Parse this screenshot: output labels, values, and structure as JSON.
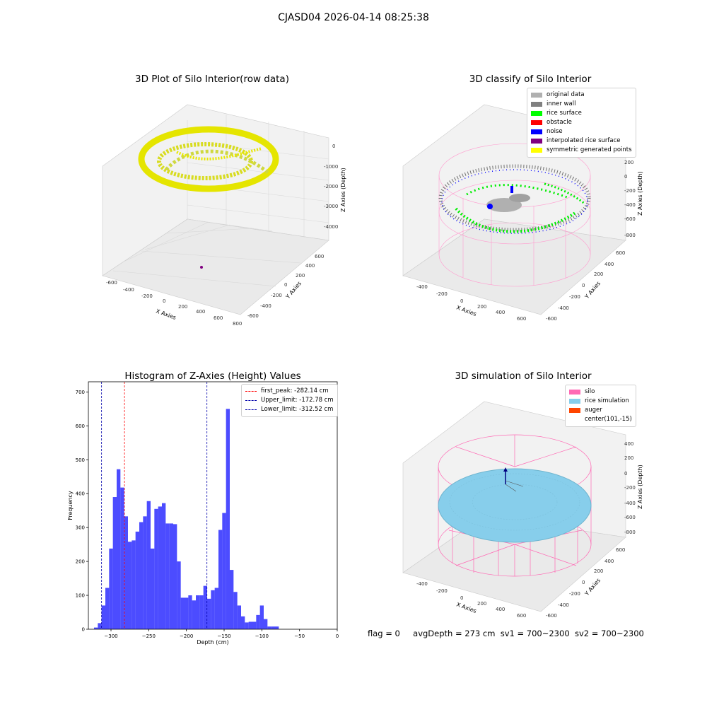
{
  "suptitle": "CJASD04 2026-04-14 08:25:38",
  "panels": {
    "raw": {
      "title": "3D Plot of Silo Interior(row data)",
      "xlabel": "X Axies",
      "ylabel": "Y Axies",
      "zlabel": "Z Axies (Depth)",
      "xticks": [
        "-600",
        "-400",
        "-200",
        "0",
        "200",
        "400",
        "600",
        "800"
      ],
      "yticks": [
        "-600",
        "-400",
        "-200",
        "0",
        "200",
        "400",
        "600"
      ],
      "zticks": [
        "0",
        "-1000",
        "-2000",
        "-3000",
        "-4000"
      ]
    },
    "classify": {
      "title": "3D classify of Silo Interior",
      "xlabel": "X Axies",
      "ylabel": "Y Axies",
      "zlabel": "Z Axies (Depth)",
      "xticks": [
        "-400",
        "-200",
        "0",
        "200",
        "400",
        "600"
      ],
      "yticks": [
        "-600",
        "-400",
        "-200",
        "0",
        "200",
        "400",
        "600"
      ],
      "zticks": [
        "400",
        "200",
        "0",
        "-200",
        "-400",
        "-600",
        "-800"
      ],
      "legend": [
        {
          "label": "original data",
          "color": "#b0b0b0"
        },
        {
          "label": "inner wall",
          "color": "#808080"
        },
        {
          "label": "rice surface",
          "color": "#00ff00"
        },
        {
          "label": "obstacle",
          "color": "#ff0000"
        },
        {
          "label": "noise",
          "color": "#0000ff"
        },
        {
          "label": "interpolated rice surface",
          "color": "#800080"
        },
        {
          "label": "symmetric generated points",
          "color": "#ffff00"
        }
      ]
    },
    "simulation": {
      "title": "3D simulation of Silo Interior",
      "xlabel": "X Axies",
      "ylabel": "Y Axies",
      "zlabel": "Z Axies (Depth)",
      "xticks": [
        "-400",
        "-200",
        "0",
        "200",
        "400",
        "600"
      ],
      "yticks": [
        "-600",
        "-400",
        "-200",
        "0",
        "200",
        "400",
        "600"
      ],
      "zticks": [
        "400",
        "200",
        "0",
        "-200",
        "-400",
        "-600",
        "-800"
      ],
      "legend": [
        {
          "label": "silo",
          "color": "#ff69b4"
        },
        {
          "label": "rice simulation",
          "color": "#87ceeb"
        },
        {
          "label": "auger",
          "color": "#ff4500"
        },
        {
          "label": "center(101,-15)",
          "color": ""
        }
      ]
    }
  },
  "footer": {
    "flag": "flag = 0",
    "avg_depth": "avgDepth = 273 cm",
    "sv1": "sv1 = 700~2300",
    "sv2": "sv2 = 700~2300"
  },
  "chart_data": {
    "type": "bar",
    "title": "Histogram of Z-Axies (Height) Values",
    "xlabel": "Depth (cm)",
    "ylabel": "Frequency",
    "xlim": [
      -330,
      0
    ],
    "ylim": [
      0,
      730
    ],
    "xticks": [
      -300,
      -250,
      -200,
      -150,
      -100,
      -50,
      0
    ],
    "yticks": [
      0,
      100,
      200,
      300,
      400,
      500,
      600,
      700
    ],
    "bar_color": "#0000ff",
    "bin_start": -322.5,
    "bin_width": 5,
    "values": [
      5,
      18,
      70,
      122,
      238,
      390,
      472,
      418,
      333,
      258,
      262,
      288,
      316,
      333,
      378,
      238,
      355,
      362,
      372,
      312,
      312,
      310,
      200,
      93,
      93,
      100,
      85,
      100,
      100,
      128,
      90,
      115,
      122,
      293,
      343,
      650,
      175,
      110,
      70,
      38,
      20,
      22,
      22,
      42,
      70,
      30,
      8,
      8,
      8
    ],
    "vlines": [
      {
        "label": "first_peak: -282.14 cm",
        "x": -282.14,
        "color": "#ff0000"
      },
      {
        "label": "Upper_limit: -172.78 cm",
        "x": -172.78,
        "color": "#0000aa"
      },
      {
        "label": "Lower_limit: -312.52 cm",
        "x": -312.52,
        "color": "#0000aa"
      }
    ]
  }
}
